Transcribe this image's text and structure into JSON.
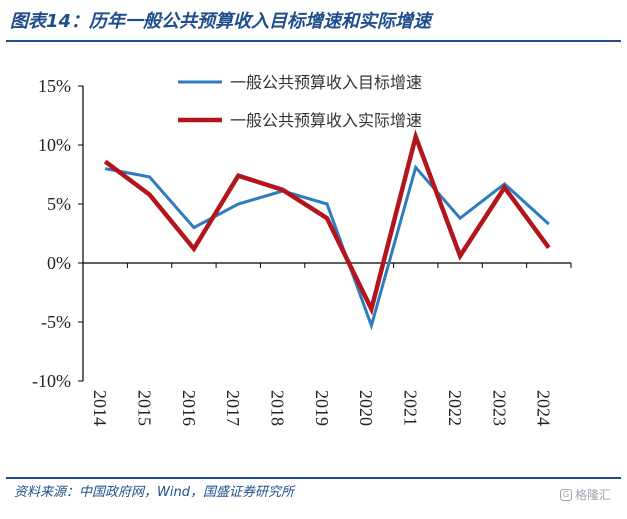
{
  "figure": {
    "title": "图表14：历年一般公共预算收入目标增速和实际增速",
    "source": "资料来源：中国政府网，Wind，国盛证券研究所",
    "watermark": "格隆汇"
  },
  "colors": {
    "title": "#1f4e8c",
    "target": "#2e7bbf",
    "actual": "#b3151c"
  },
  "chart_data": {
    "type": "line",
    "x": [
      "2014",
      "2015",
      "2016",
      "2017",
      "2018",
      "2019",
      "2020",
      "2021",
      "2022",
      "2023",
      "2024"
    ],
    "yticks": [
      "15%",
      "10%",
      "5%",
      "0%",
      "-5%",
      "-10%"
    ],
    "ylim": [
      -10,
      15
    ],
    "series": [
      {
        "name": "一般公共预算收入目标增速",
        "color": "#2e7bbf",
        "values": [
          8.0,
          7.3,
          3.0,
          5.0,
          6.1,
          5.0,
          -5.3,
          8.1,
          3.8,
          6.7,
          3.3
        ]
      },
      {
        "name": "一般公共预算收入实际增速",
        "color": "#b3151c",
        "values": [
          8.6,
          5.8,
          1.2,
          7.4,
          6.2,
          3.8,
          -3.9,
          10.7,
          0.6,
          6.4,
          1.3
        ]
      }
    ],
    "legend_position": "top-right"
  }
}
